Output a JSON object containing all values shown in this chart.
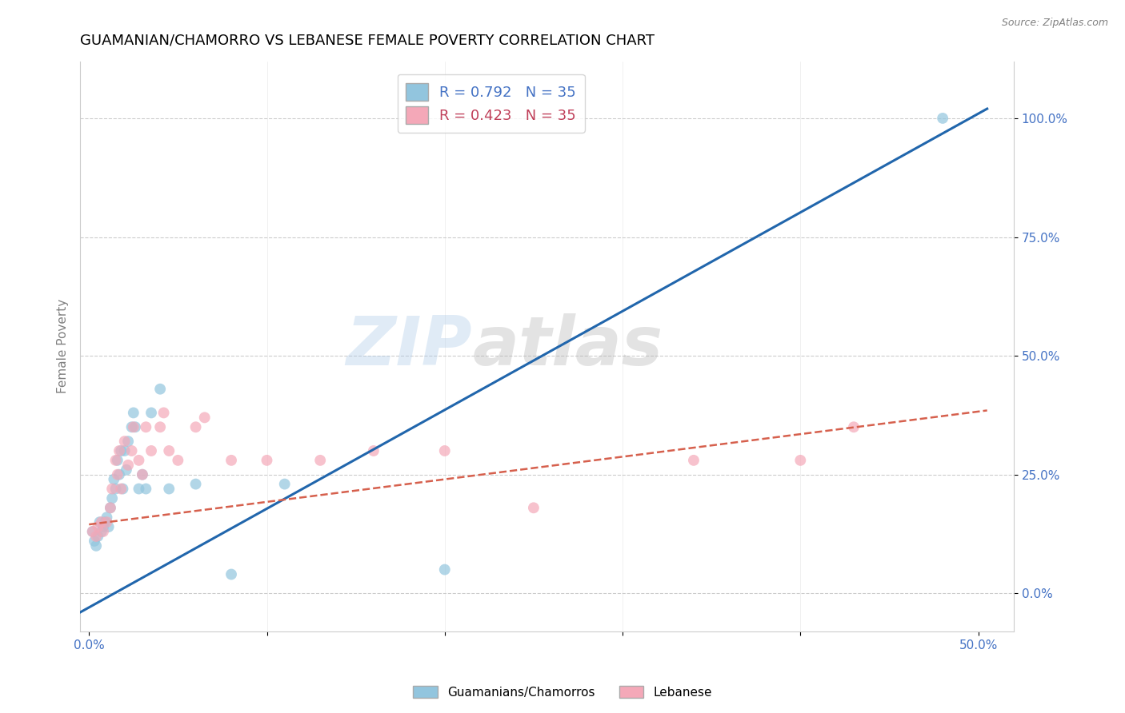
{
  "title": "GUAMANIAN/CHAMORRO VS LEBANESE FEMALE POVERTY CORRELATION CHART",
  "source": "Source: ZipAtlas.com",
  "ylabel": "Female Poverty",
  "xlim": [
    -0.005,
    0.52
  ],
  "ylim": [
    -0.08,
    1.12
  ],
  "x_ticks": [
    0.0,
    0.1,
    0.2,
    0.3,
    0.4,
    0.5
  ],
  "x_tick_labels": [
    "0.0%",
    "",
    "",
    "",
    "",
    "50.0%"
  ],
  "y_ticks_right": [
    0.0,
    0.25,
    0.5,
    0.75,
    1.0
  ],
  "y_tick_labels_right": [
    "0.0%",
    "25.0%",
    "50.0%",
    "75.0%",
    "100.0%"
  ],
  "legend1_label": "R = 0.792   N = 35",
  "legend2_label": "R = 0.423   N = 35",
  "blue_color": "#92c5de",
  "pink_color": "#f4a8b8",
  "trend_blue": "#2166ac",
  "trend_pink": "#d6604d",
  "background_color": "#ffffff",
  "watermark_text": "ZIP",
  "watermark_text2": "atlas",
  "blue_scatter_x": [
    0.002,
    0.003,
    0.004,
    0.005,
    0.006,
    0.007,
    0.008,
    0.009,
    0.01,
    0.011,
    0.012,
    0.013,
    0.014,
    0.015,
    0.016,
    0.017,
    0.018,
    0.019,
    0.02,
    0.021,
    0.022,
    0.024,
    0.025,
    0.026,
    0.028,
    0.03,
    0.032,
    0.035,
    0.04,
    0.045,
    0.06,
    0.08,
    0.11,
    0.2,
    0.48
  ],
  "blue_scatter_y": [
    0.13,
    0.11,
    0.1,
    0.12,
    0.15,
    0.13,
    0.14,
    0.15,
    0.16,
    0.14,
    0.18,
    0.2,
    0.24,
    0.22,
    0.28,
    0.25,
    0.3,
    0.22,
    0.3,
    0.26,
    0.32,
    0.35,
    0.38,
    0.35,
    0.22,
    0.25,
    0.22,
    0.38,
    0.43,
    0.22,
    0.23,
    0.04,
    0.23,
    0.05,
    1.0
  ],
  "pink_scatter_x": [
    0.002,
    0.004,
    0.005,
    0.007,
    0.008,
    0.01,
    0.012,
    0.013,
    0.015,
    0.016,
    0.017,
    0.018,
    0.02,
    0.022,
    0.024,
    0.025,
    0.028,
    0.03,
    0.032,
    0.035,
    0.04,
    0.042,
    0.045,
    0.05,
    0.06,
    0.065,
    0.08,
    0.1,
    0.13,
    0.16,
    0.2,
    0.25,
    0.34,
    0.4,
    0.43
  ],
  "pink_scatter_y": [
    0.13,
    0.12,
    0.14,
    0.15,
    0.13,
    0.15,
    0.18,
    0.22,
    0.28,
    0.25,
    0.3,
    0.22,
    0.32,
    0.27,
    0.3,
    0.35,
    0.28,
    0.25,
    0.35,
    0.3,
    0.35,
    0.38,
    0.3,
    0.28,
    0.35,
    0.37,
    0.28,
    0.28,
    0.28,
    0.3,
    0.3,
    0.18,
    0.28,
    0.28,
    0.35
  ],
  "blue_line_x": [
    -0.005,
    0.505
  ],
  "blue_line_y": [
    -0.04,
    1.02
  ],
  "pink_line_x": [
    0.0,
    0.505
  ],
  "pink_line_y": [
    0.145,
    0.385
  ],
  "dot_size": 100,
  "title_fontsize": 13,
  "label_fontsize": 11,
  "tick_fontsize": 11,
  "legend_fontsize": 13
}
